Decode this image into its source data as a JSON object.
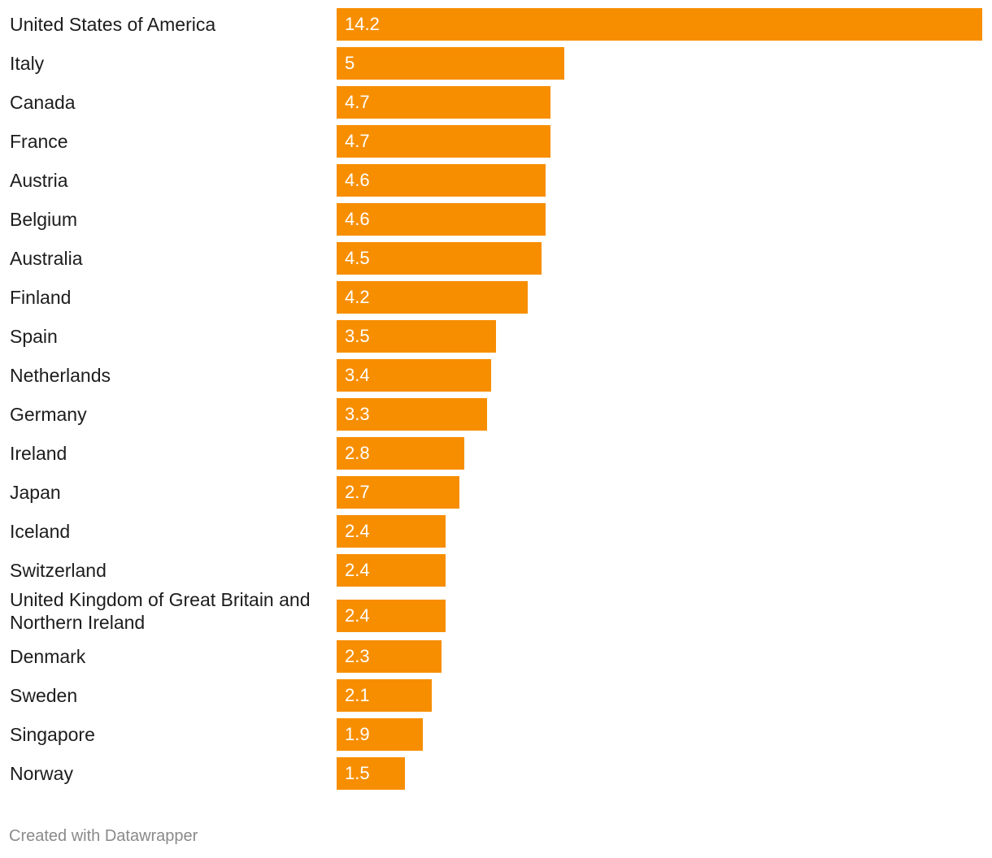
{
  "chart_data": {
    "type": "bar",
    "orientation": "horizontal",
    "categories": [
      "United States of America",
      "Italy",
      "Canada",
      "France",
      "Austria",
      "Belgium",
      "Australia",
      "Finland",
      "Spain",
      "Netherlands",
      "Germany",
      "Ireland",
      "Japan",
      "Iceland",
      "Switzerland",
      "United Kingdom of Great Britain and Northern Ireland",
      "Denmark",
      "Sweden",
      "Singapore",
      "Norway"
    ],
    "values": [
      14.2,
      5,
      4.7,
      4.7,
      4.6,
      4.6,
      4.5,
      4.2,
      3.5,
      3.4,
      3.3,
      2.8,
      2.7,
      2.4,
      2.4,
      2.4,
      2.3,
      2.1,
      1.9,
      1.5
    ],
    "value_labels": [
      "14.2",
      "5",
      "4.7",
      "4.7",
      "4.6",
      "4.6",
      "4.5",
      "4.2",
      "3.5",
      "3.4",
      "3.3",
      "2.8",
      "2.7",
      "2.4",
      "2.4",
      "2.4",
      "2.3",
      "2.1",
      "1.9",
      "1.5"
    ],
    "xlim": [
      0,
      14.2
    ],
    "bar_color": "#f78e00",
    "value_label_color": "#ffffff",
    "grid": false,
    "legend": "none"
  },
  "footer": {
    "credit": "Created with Datawrapper"
  }
}
